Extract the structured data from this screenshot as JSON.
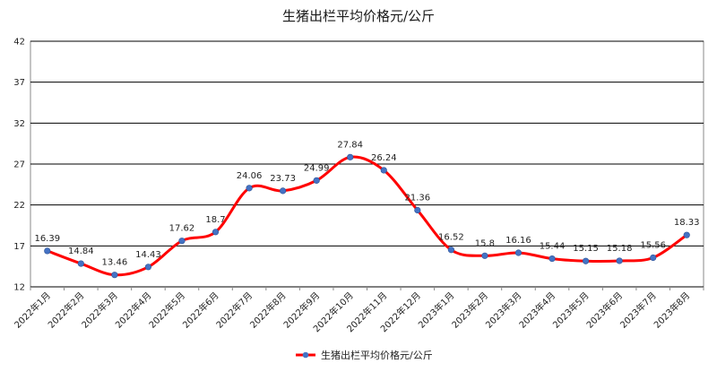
{
  "chart_data": {
    "type": "line",
    "title": "生猪出栏平均价格元/公斤",
    "categories": [
      "2022年1月",
      "2022年2月",
      "2022年3月",
      "2022年4月",
      "2022年5月",
      "2022年6月",
      "2022年7月",
      "2022年8月",
      "2022年9月",
      "2022年10月",
      "2022年11月",
      "2022年12月",
      "2023年1月",
      "2023年2月",
      "2023年3月",
      "2023年4月",
      "2023年5月",
      "2023年6月",
      "2023年7月",
      "2023年8月"
    ],
    "series": [
      {
        "name": "生猪出栏平均价格元/公斤",
        "values": [
          16.39,
          14.84,
          13.46,
          14.43,
          17.62,
          18.7,
          24.06,
          23.73,
          24.99,
          27.84,
          26.24,
          21.36,
          16.52,
          15.8,
          16.16,
          15.44,
          15.15,
          15.18,
          15.56,
          18.33
        ],
        "labels": [
          "16.39",
          "14.84",
          "13.46",
          "14.43",
          "17.62",
          "18.7",
          "24.06",
          "23.73",
          "24.99",
          "27.84",
          "26.24",
          "21.36",
          "16.52",
          "15.8",
          "16.16",
          "15.44",
          "15.15",
          "15.18",
          "15.56",
          "18.33"
        ]
      }
    ],
    "yticks": [
      "12",
      "17",
      "22",
      "27",
      "32",
      "37",
      "42"
    ],
    "ylim": [
      12,
      42
    ],
    "grid": true,
    "legend": "bottom",
    "colors": {
      "line": "#ff0000",
      "marker": "#4472c4",
      "grid": "#000000"
    }
  }
}
